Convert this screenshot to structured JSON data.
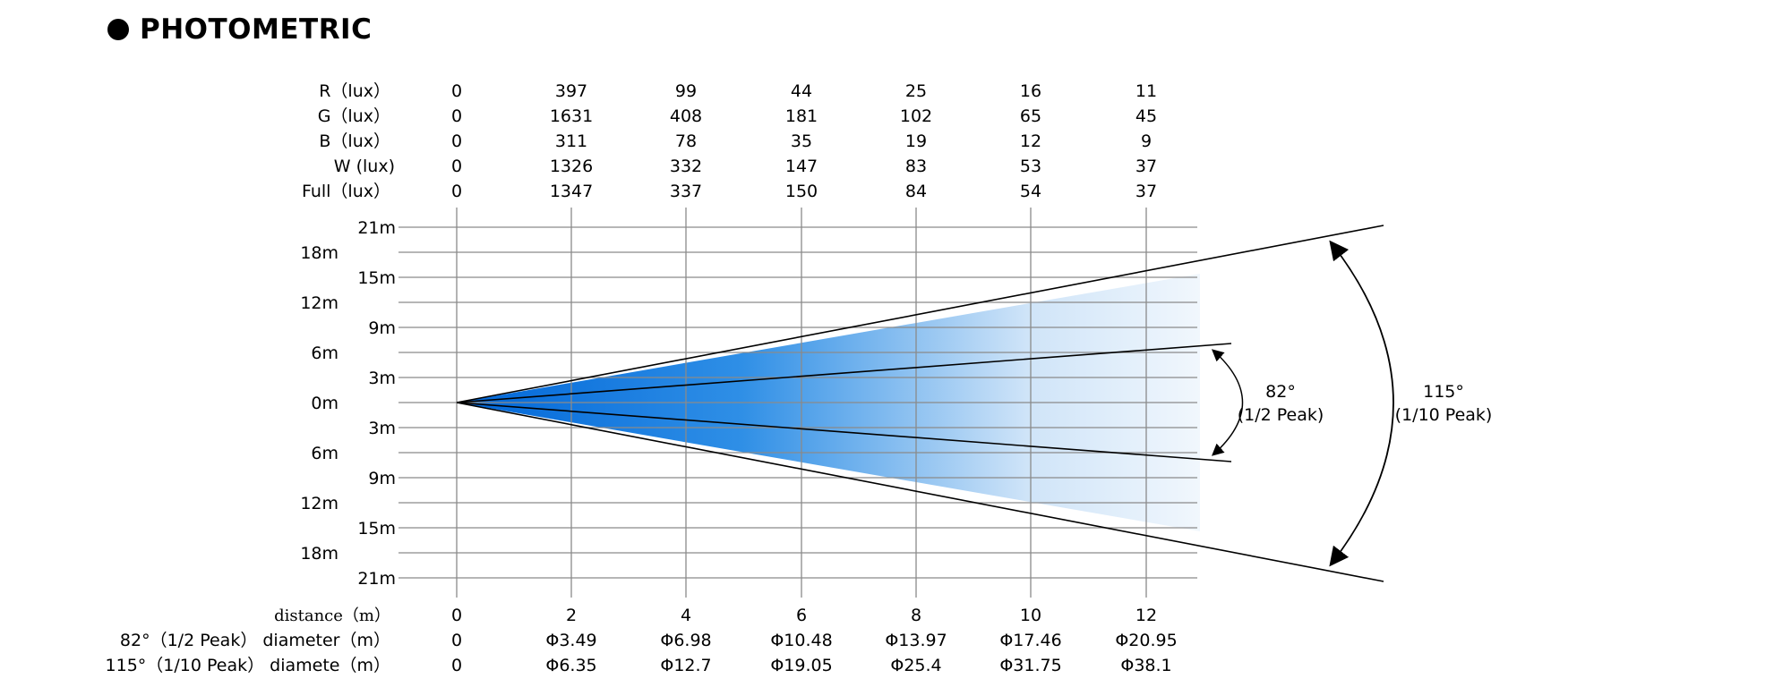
{
  "header": {
    "title": "PHOTOMETRIC"
  },
  "illuminance_rows": [
    {
      "label": "R（lux）",
      "values": [
        "0",
        "397",
        "99",
        "44",
        "25",
        "16",
        "11"
      ]
    },
    {
      "label": "G（lux）",
      "values": [
        "0",
        "1631",
        "408",
        "181",
        "102",
        "65",
        "45"
      ]
    },
    {
      "label": "B（lux）",
      "values": [
        "0",
        "311",
        "78",
        "35",
        "19",
        "12",
        "9"
      ]
    },
    {
      "label": "W  (lux)",
      "values": [
        "0",
        "1326",
        "332",
        "147",
        "83",
        "53",
        "37"
      ]
    },
    {
      "label": "Full（lux）",
      "values": [
        "0",
        "1347",
        "337",
        "150",
        "84",
        "54",
        "37"
      ]
    }
  ],
  "distance_row": {
    "label": "distance（m）",
    "values": [
      "0",
      "2",
      "4",
      "6",
      "8",
      "10",
      "12"
    ]
  },
  "diameter_rows": [
    {
      "label": "82°（1/2 Peak） diameter（m）",
      "values": [
        "0",
        "Φ3.49",
        "Φ6.98",
        "Φ10.48",
        "Φ13.97",
        "Φ17.46",
        "Φ20.95"
      ]
    },
    {
      "label": "115°（1/10 Peak） diamete（m）",
      "values": [
        "0",
        "Φ6.35",
        "Φ12.7",
        "Φ19.05",
        "Φ25.4",
        "Φ31.75",
        "Φ38.1"
      ]
    }
  ],
  "y_tick_labels": [
    "21m",
    "18m",
    "15m",
    "12m",
    "9m",
    "6m",
    "3m",
    "0m",
    "3m",
    "6m",
    "9m",
    "12m",
    "15m",
    "18m",
    "21m"
  ],
  "angle_labels": {
    "half_peak_angle": "82°",
    "half_peak_text": "(1/2 Peak)",
    "tenth_peak_angle": "115°",
    "tenth_peak_text": "(1/10 Peak)"
  },
  "colors": {
    "beam_deep": "#0066d8",
    "beam_mid": "#2f8fe6",
    "beam_light": "#cfe4f8",
    "grid": "#8a8a8a"
  }
}
